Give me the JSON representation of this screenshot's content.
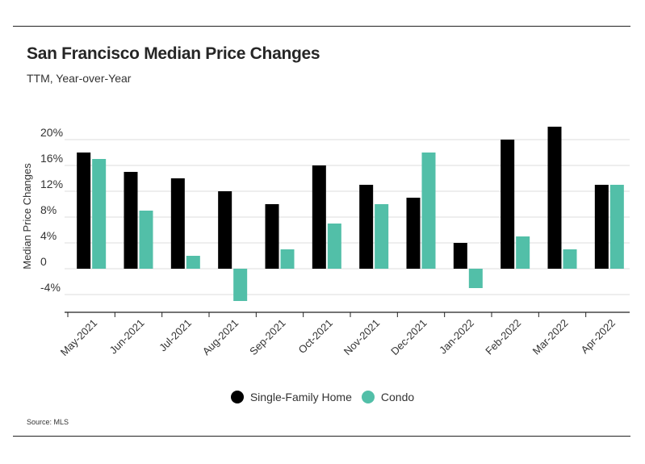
{
  "header": {
    "title": "San Francisco Median Price Changes",
    "subtitle": "TTM, Year-over-Year"
  },
  "footer": {
    "source": "Source:  MLS"
  },
  "colors": {
    "single_family": "#000000",
    "condo": "#52bfa8",
    "grid": "#dcdcdc",
    "axis": "#222222"
  },
  "chart_data": {
    "type": "bar",
    "categories": [
      "May-2021",
      "Jun-2021",
      "Jul-2021",
      "Aug-2021",
      "Sep-2021",
      "Oct-2021",
      "Nov-2021",
      "Dec-2021",
      "Jan-2022",
      "Feb-2022",
      "Mar-2022",
      "Apr-2022"
    ],
    "series": [
      {
        "name": "Single-Family Home",
        "values": [
          18,
          15,
          14,
          12,
          10,
          16,
          13,
          11,
          4,
          20,
          22,
          13
        ]
      },
      {
        "name": "Condo",
        "values": [
          17,
          9,
          2,
          -5,
          3,
          7,
          10,
          18,
          -3,
          5,
          3,
          13
        ]
      }
    ],
    "y_ticks": [
      20,
      16,
      12,
      8,
      4,
      0,
      -4
    ],
    "y_tick_labels": [
      "20%",
      "16%",
      "12%",
      "8%",
      "4%",
      "0",
      "-4%"
    ],
    "ylabel": "Median Price Changes",
    "xlabel": "",
    "ylim": [
      -8,
      22
    ],
    "grid": true,
    "legend_position": "bottom-center"
  }
}
